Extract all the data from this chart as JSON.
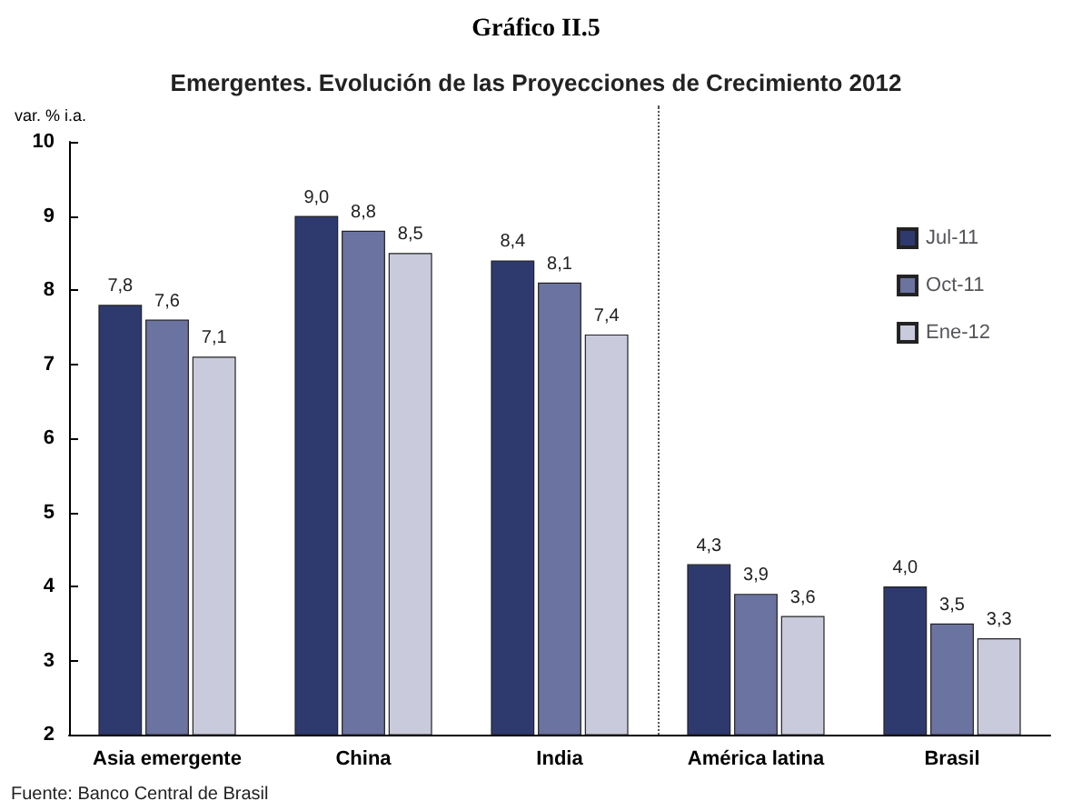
{
  "chart_data": {
    "type": "bar",
    "title": "Gráfico II.5",
    "subtitle": "Emergentes. Evolución de las Proyecciones de Crecimiento 2012",
    "ylabel": "var. % i.a.",
    "categories": [
      "Asia emergente",
      "China",
      "India",
      "América latina",
      "Brasil"
    ],
    "series": [
      {
        "name": "Jul-11",
        "color": "#2e3a6e",
        "values": [
          7.8,
          9.0,
          8.4,
          4.3,
          4.0
        ],
        "value_labels": [
          "7,8",
          "9,0",
          "8,4",
          "4,3",
          "4,0"
        ]
      },
      {
        "name": "Oct-11",
        "color": "#6b74a0",
        "values": [
          7.6,
          8.8,
          8.1,
          3.9,
          3.5
        ],
        "value_labels": [
          "7,6",
          "8,8",
          "8,1",
          "3,9",
          "3,5"
        ]
      },
      {
        "name": "Ene-12",
        "color": "#c9cbdc",
        "values": [
          7.1,
          8.5,
          7.4,
          3.6,
          3.3
        ],
        "value_labels": [
          "7,1",
          "8,5",
          "7,4",
          "3,6",
          "3,3"
        ]
      }
    ],
    "ylim": [
      2,
      10
    ],
    "yticks": [
      2,
      3,
      4,
      5,
      6,
      7,
      8,
      9,
      10
    ],
    "grid": false,
    "legend": "top right",
    "annotations": [
      "Fuente: Banco Central de Brasil"
    ]
  }
}
